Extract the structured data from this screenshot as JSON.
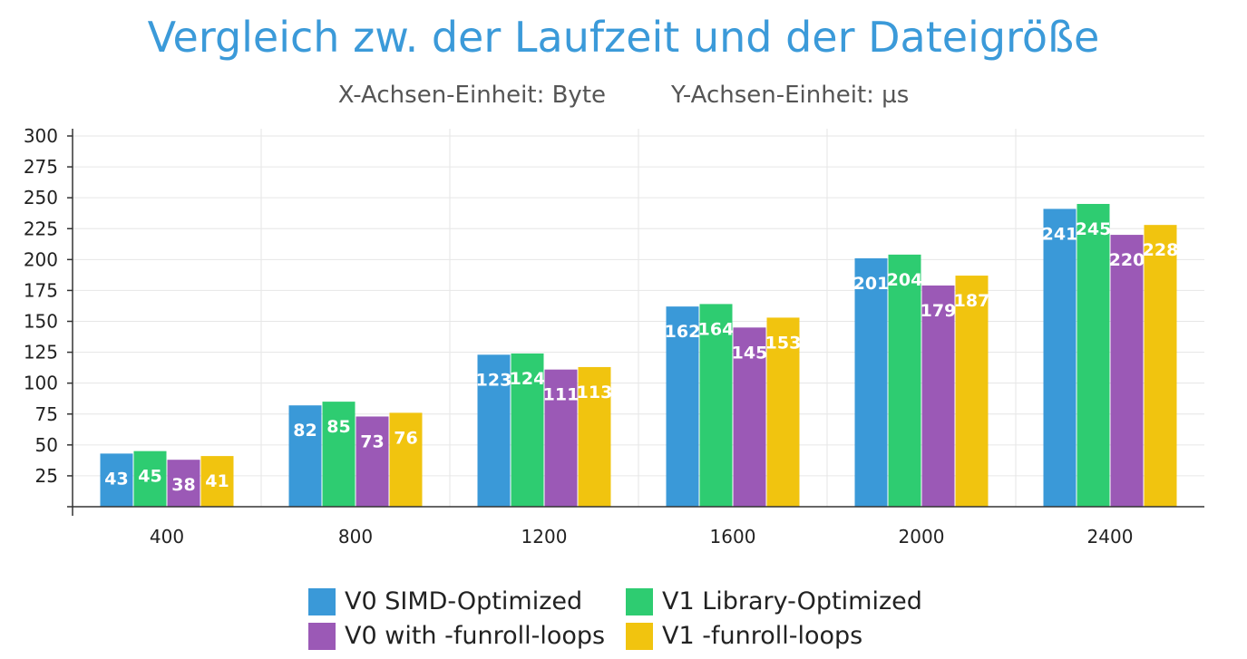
{
  "chart_data": {
    "type": "bar",
    "title": "Vergleich zw. der Laufzeit und der Dateigröße",
    "subtitle_x": "X-Achsen-Einheit: Byte",
    "subtitle_y": "Y-Achsen-Einheit: µs",
    "categories": [
      "400",
      "800",
      "1200",
      "1600",
      "2000",
      "2400"
    ],
    "ylim": [
      0,
      300
    ],
    "yticks": [
      25,
      50,
      75,
      100,
      125,
      150,
      175,
      200,
      225,
      250,
      275,
      300
    ],
    "grid": true,
    "legend_position": "bottom",
    "series": [
      {
        "name": "V0 SIMD-Optimized",
        "color": "#3a99d8",
        "values": [
          43,
          82,
          123,
          162,
          201,
          241
        ]
      },
      {
        "name": "V1 Library-Optimized",
        "color": "#2ecc71",
        "values": [
          45,
          85,
          124,
          164,
          204,
          245
        ]
      },
      {
        "name": "V0 with -funroll-loops",
        "color": "#9b59b6",
        "values": [
          38,
          73,
          111,
          145,
          179,
          220
        ]
      },
      {
        "name": "V1 -funroll-loops",
        "color": "#f1c40f",
        "values": [
          41,
          76,
          113,
          153,
          187,
          228
        ]
      }
    ]
  }
}
